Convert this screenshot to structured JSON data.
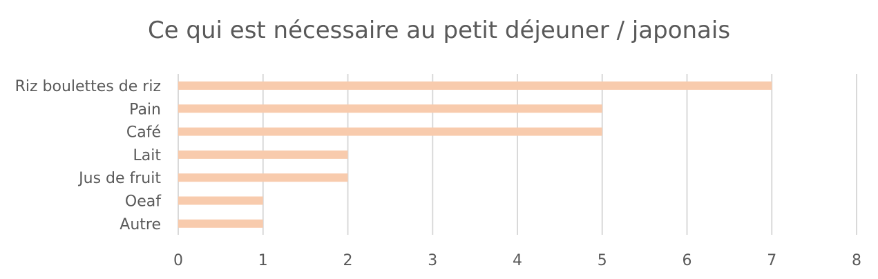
{
  "chart_data": {
    "type": "bar",
    "orientation": "horizontal",
    "title": "Ce qui est nécessaire au petit déjeuner / japonais",
    "xlabel": "",
    "ylabel": "",
    "categories": [
      "Riz boulettes de riz",
      "Pain",
      "Café",
      "Lait",
      "Jus de fruit",
      "Oeaf",
      "Autre"
    ],
    "values": [
      7,
      5,
      5,
      2,
      2,
      1,
      1
    ],
    "xlim": [
      0,
      8
    ],
    "xticks": [
      "0",
      "1",
      "2",
      "3",
      "4",
      "5",
      "6",
      "7",
      "8"
    ],
    "grid": true,
    "legend": "none",
    "colors": {
      "bar": "#f8cbad",
      "grid": "#d9d9d9",
      "text": "#595959"
    }
  }
}
